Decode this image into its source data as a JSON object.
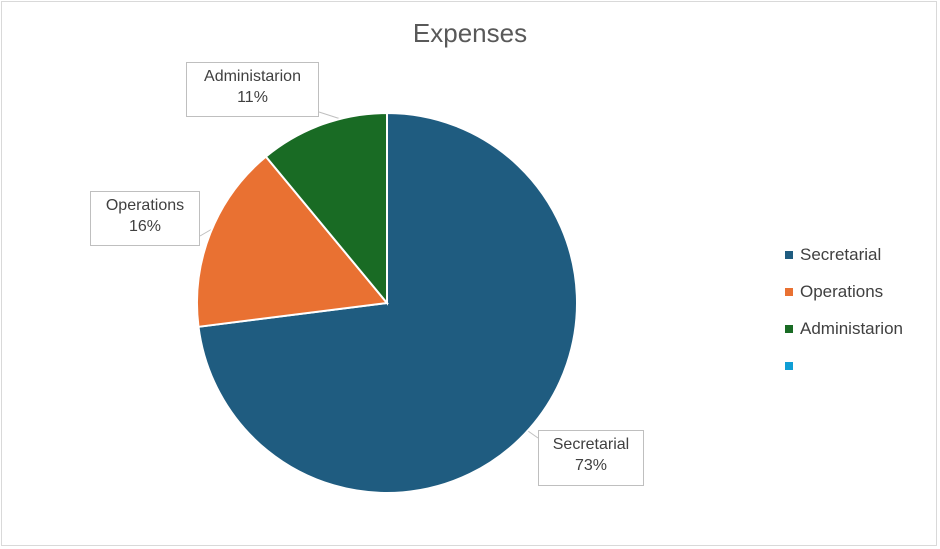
{
  "chart_data": {
    "type": "pie",
    "title": "Expenses",
    "slices": [
      {
        "label": "Secretarial",
        "percent": 73,
        "percent_label": "73%",
        "color": "#1f5c80"
      },
      {
        "label": "Operations",
        "percent": 16,
        "percent_label": "16%",
        "color": "#e97132"
      },
      {
        "label": "Administarion",
        "percent": 11,
        "percent_label": "11%",
        "color": "#196b24"
      }
    ],
    "legend": {
      "placement": "right",
      "entries": [
        {
          "label": "Secretarial",
          "color": "#1f5c80"
        },
        {
          "label": "Operations",
          "color": "#e97132"
        },
        {
          "label": "Administarion",
          "color": "#196b24"
        },
        {
          "label": "",
          "color": "#0f9ed5"
        }
      ]
    }
  }
}
